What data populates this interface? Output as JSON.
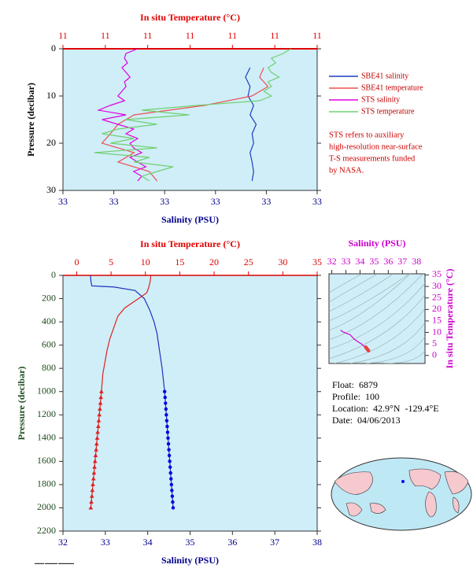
{
  "chart_data": [
    {
      "type": "profile",
      "xlabel": "Salinity (PSU)",
      "x2label": "In situ Temperature (°C)",
      "ylabel": "Pressure (decibar)",
      "xlim": [
        32.8,
        33.3
      ],
      "xticks": [
        {
          "value": 32.8,
          "label": "33"
        },
        {
          "value": 32.9,
          "label": "33"
        },
        {
          "value": 33.0,
          "label": "33"
        },
        {
          "value": 33.1,
          "label": "33"
        },
        {
          "value": 33.2,
          "label": "33"
        },
        {
          "value": 33.3,
          "label": "33"
        }
      ],
      "x2lim": [
        10.8,
        11.1
      ],
      "x2ticks": [
        {
          "value": 10.8,
          "label": "11"
        },
        {
          "value": 10.85,
          "label": "11"
        },
        {
          "value": 10.9,
          "label": "11"
        },
        {
          "value": 10.95,
          "label": "11"
        },
        {
          "value": 11.0,
          "label": "11"
        },
        {
          "value": 11.05,
          "label": "11"
        },
        {
          "value": 11.1,
          "label": "11"
        }
      ],
      "ylim": [
        0,
        30
      ],
      "yticks": [
        0,
        10,
        20,
        30
      ],
      "y_inverted": true,
      "axis_colors": {
        "x": "#00008b",
        "x2": "#e00000",
        "y": "#000000"
      },
      "legend": "right",
      "series": [
        {
          "name": "SBE41 salinity",
          "color": "#1f3fbf",
          "x": [
            33.168,
            33.159,
            33.168,
            33.164,
            33.175,
            33.168,
            33.18,
            33.172,
            33.175,
            33.168,
            33.172,
            33.175,
            33.172
          ],
          "y": [
            4,
            6,
            8,
            10,
            12,
            14,
            16,
            18,
            20,
            22,
            24,
            26,
            28
          ]
        },
        {
          "name": "SBE41 temperature",
          "color": "#ee5050",
          "axis": "x2",
          "x": [
            11.037,
            11.032,
            11.042,
            11.023,
            10.967,
            10.884,
            10.865,
            10.856,
            10.846,
            10.884,
            10.865,
            10.902,
            10.911
          ],
          "y": [
            4,
            6,
            8,
            10,
            12,
            14,
            16,
            18,
            20,
            22,
            24,
            26,
            28
          ]
        },
        {
          "name": "STS salinity",
          "color": "#e000e0",
          "x": [
            32.947,
            32.924,
            32.921,
            32.927,
            32.916,
            32.924,
            32.932,
            32.921,
            32.924,
            32.916,
            32.908,
            32.921,
            32.893,
            32.87,
            32.924,
            32.877,
            32.908,
            32.939,
            32.924,
            32.947,
            32.932,
            32.939,
            32.955,
            32.932,
            32.947,
            32.963,
            32.939,
            32.955,
            32.947
          ],
          "y": [
            0,
            1,
            2,
            3,
            4,
            5,
            6,
            7,
            8,
            9,
            10,
            11,
            12,
            13,
            14,
            15,
            16,
            17,
            18,
            19,
            20,
            21,
            22,
            23,
            24,
            25,
            26,
            27,
            28
          ]
        },
        {
          "name": "STS temperature",
          "color": "#70d070",
          "axis": "x2",
          "x": [
            11.069,
            11.06,
            11.046,
            11.051,
            11.042,
            11.046,
            11.055,
            11.042,
            11.046,
            11.037,
            11.046,
            11.032,
            10.958,
            10.893,
            10.949,
            10.874,
            10.911,
            10.865,
            10.846,
            10.884,
            10.856,
            10.911,
            10.837,
            10.902,
            10.884,
            10.93,
            10.911,
            10.893,
            10.902
          ],
          "y": [
            0,
            1,
            2,
            3,
            4,
            5,
            6,
            7,
            8,
            9,
            10,
            11,
            12,
            13,
            14,
            15,
            16,
            17,
            18,
            19,
            20,
            21,
            22,
            23,
            24,
            25,
            26,
            27,
            28
          ]
        }
      ],
      "annotations": [
        "STS refers to auxiliary",
        "high-resolution near-surface",
        "T-S measurements funded",
        "by NASA."
      ]
    },
    {
      "type": "profile",
      "xlabel": "Salinity (PSU)",
      "x2label": "In situ Temperature (°C)",
      "ylabel": "Pressure (decibar)",
      "xlim": [
        32,
        38
      ],
      "xticks": [
        32,
        33,
        34,
        35,
        36,
        37,
        38
      ],
      "x2lim": [
        -2,
        35
      ],
      "x2ticks": [
        0,
        5,
        10,
        15,
        20,
        25,
        30,
        35
      ],
      "ylim": [
        0,
        2200
      ],
      "yticks": [
        0,
        200,
        400,
        600,
        800,
        1000,
        1200,
        1400,
        1600,
        1800,
        2000,
        2200
      ],
      "y_inverted": true,
      "axis_colors": {
        "x": "#00008b",
        "x2": "#e00000",
        "y": "#1e4a1e"
      },
      "series": [
        {
          "color": "#2030c0",
          "x": [
            32.65,
            32.66,
            32.68,
            33.2,
            33.7,
            33.92,
            34.05,
            34.15,
            34.22,
            34.26,
            34.3,
            34.34,
            34.37,
            34.4,
            34.42,
            34.44,
            34.46,
            34.48,
            34.5,
            34.52,
            34.54,
            34.56,
            34.58,
            34.6
          ],
          "y": [
            0,
            50,
            90,
            100,
            130,
            200,
            300,
            400,
            500,
            600,
            700,
            800,
            900,
            1000,
            1100,
            1200,
            1300,
            1400,
            1500,
            1600,
            1700,
            1800,
            1900,
            2000
          ]
        },
        {
          "color": "#e02020",
          "axis": "x2",
          "x": [
            10.8,
            10.7,
            10.5,
            10.2,
            9,
            7,
            6,
            5.4,
            4.8,
            4.4,
            4.1,
            3.8,
            3.6,
            3.45,
            3.29,
            3.14,
            2.98,
            2.83,
            2.67,
            2.52,
            2.36,
            2.21,
            2.05
          ],
          "y": [
            0,
            50,
            100,
            150,
            200,
            280,
            350,
            450,
            550,
            650,
            750,
            850,
            1000,
            1100,
            1200,
            1300,
            1400,
            1500,
            1600,
            1700,
            1800,
            1900,
            2000
          ]
        },
        {
          "color": "#0000e0",
          "marker": "circle",
          "x": [
            34.4,
            34.41,
            34.42,
            34.43,
            34.44,
            34.45,
            34.46,
            34.47,
            34.48,
            34.49,
            34.5,
            34.51,
            34.52,
            34.53,
            34.54,
            34.55,
            34.56,
            34.57,
            34.58,
            34.59,
            34.6
          ],
          "y": [
            1000,
            1050,
            1100,
            1150,
            1200,
            1250,
            1300,
            1350,
            1400,
            1450,
            1500,
            1550,
            1600,
            1650,
            1700,
            1750,
            1800,
            1850,
            1900,
            1950,
            2000
          ]
        },
        {
          "color": "#e02020",
          "marker": "triangle",
          "axis": "x2",
          "x": [
            3.6,
            3.52,
            3.45,
            3.37,
            3.29,
            3.21,
            3.14,
            3.06,
            2.98,
            2.9,
            2.83,
            2.75,
            2.67,
            2.59,
            2.52,
            2.44,
            2.36,
            2.28,
            2.21,
            2.13,
            2.05
          ],
          "y": [
            1000,
            1050,
            1100,
            1150,
            1200,
            1250,
            1300,
            1350,
            1400,
            1450,
            1500,
            1550,
            1600,
            1650,
            1700,
            1750,
            1800,
            1850,
            1900,
            1950,
            2000
          ]
        }
      ]
    },
    {
      "type": "line",
      "xlabel": "Salinity (PSU)",
      "ylabel": "In situ Temperature (°C)",
      "xlim": [
        31.8,
        38.6
      ],
      "xticks": [
        32,
        33,
        34,
        35,
        36,
        37,
        38
      ],
      "x_axis_position": "top",
      "ylim": [
        -3.5,
        35.5
      ],
      "yticks": [
        0,
        5,
        10,
        15,
        20,
        25,
        30,
        35
      ],
      "y_axis_position": "right",
      "axis_colors": {
        "x": "#cc00cc",
        "y": "#cc00cc"
      },
      "series": [
        {
          "color": "#d000d0",
          "x": [
            32.62,
            32.8,
            33.3,
            33.6,
            33.9,
            34.1,
            34.25,
            34.35,
            34.45,
            34.55,
            34.6
          ],
          "y": [
            11.0,
            10.2,
            9,
            7,
            5.8,
            5.0,
            4.2,
            3.6,
            3.0,
            2.4,
            2.05
          ]
        },
        {
          "color": "#e84040",
          "marker": "circle",
          "x": [
            34.4,
            34.43,
            34.46,
            34.49,
            34.52,
            34.55,
            34.58,
            34.6
          ],
          "y": [
            3.6,
            3.37,
            3.14,
            2.9,
            2.67,
            2.44,
            2.21,
            2.05
          ]
        }
      ]
    }
  ],
  "float_info": [
    "Float:  6879",
    "Profile:  100",
    "Location:  42.9°N  -129.4°E",
    "Date:  04/06/2013"
  ]
}
